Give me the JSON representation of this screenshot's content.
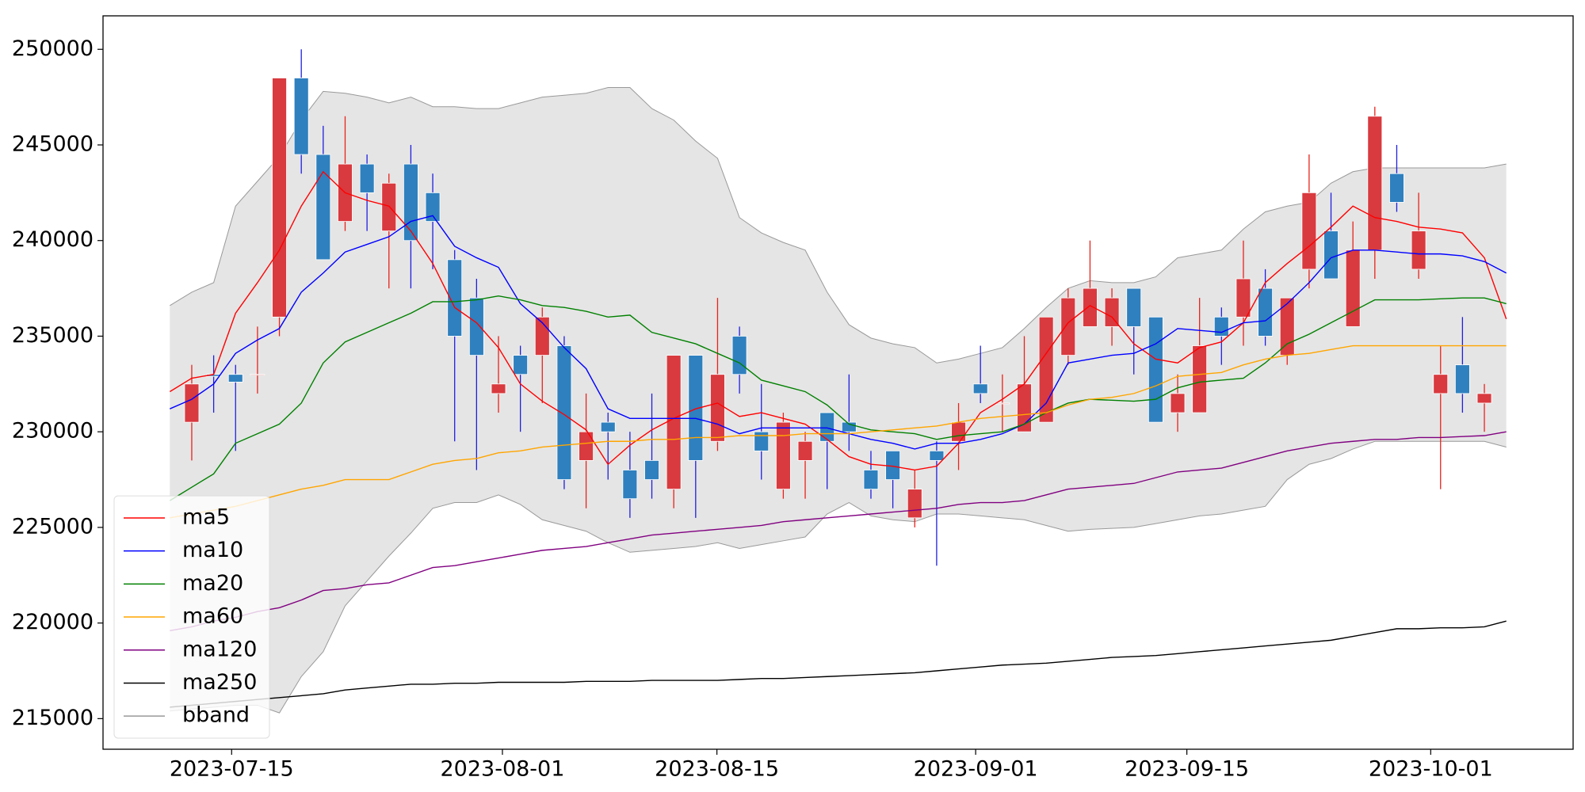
{
  "chart_data": {
    "type": "candlestick",
    "x": [
      0,
      1,
      2,
      3,
      4,
      5,
      6,
      7,
      8,
      9,
      10,
      11,
      12,
      13,
      14,
      15,
      16,
      17,
      18,
      19,
      20,
      21,
      22,
      23,
      24,
      25,
      26,
      27,
      28,
      29,
      30,
      31,
      32,
      33,
      34,
      35,
      36,
      37,
      38,
      39,
      40,
      41,
      42,
      43,
      44,
      45,
      46,
      47,
      48,
      49,
      50,
      51,
      52,
      53,
      54,
      55,
      56,
      57,
      58,
      59,
      60,
      61
    ],
    "open": [
      null,
      230500,
      233000,
      233000,
      233000,
      236000,
      248500,
      244500,
      241000,
      244000,
      240500,
      244000,
      242500,
      239000,
      237000,
      232000,
      234000,
      234000,
      234500,
      228500,
      230500,
      228000,
      228500,
      227000,
      234000,
      229500,
      235000,
      230000,
      227000,
      228500,
      231000,
      230500,
      228000,
      229000,
      225500,
      229000,
      229500,
      232500,
      231500,
      230000,
      230500,
      234000,
      235500,
      235500,
      237500,
      236000,
      231000,
      231000,
      236000,
      236000,
      237500,
      234000,
      238500,
      240500,
      235500,
      239500,
      243500,
      238500,
      232000,
      233500,
      231500,
      null
    ],
    "high": [
      null,
      233500,
      234000,
      233500,
      235500,
      248500,
      250000,
      246000,
      246500,
      244500,
      243500,
      245000,
      243500,
      239500,
      238000,
      235000,
      234500,
      236500,
      235000,
      232000,
      231000,
      230000,
      232000,
      234000,
      234000,
      237000,
      235500,
      232500,
      231000,
      230000,
      231000,
      233000,
      229000,
      229000,
      228000,
      229500,
      231500,
      234500,
      233000,
      235000,
      236000,
      237500,
      240000,
      237500,
      237500,
      236000,
      233000,
      237000,
      236500,
      240000,
      238500,
      237000,
      244500,
      242500,
      241000,
      247000,
      245000,
      242500,
      234500,
      236000,
      232500,
      null
    ],
    "low": [
      null,
      228500,
      231000,
      229000,
      232000,
      235000,
      243500,
      239000,
      240500,
      240500,
      237500,
      237500,
      238500,
      229500,
      228000,
      231000,
      230000,
      231500,
      227000,
      226000,
      227500,
      225500,
      226500,
      226000,
      225500,
      229000,
      232000,
      227500,
      226500,
      226500,
      227000,
      229000,
      226500,
      226000,
      225000,
      223000,
      228000,
      231500,
      230000,
      230000,
      230500,
      233500,
      235500,
      234500,
      233000,
      230500,
      230000,
      231000,
      233500,
      234500,
      234500,
      233500,
      237500,
      238000,
      235500,
      238000,
      241500,
      238000,
      227000,
      231000,
      230000,
      null
    ],
    "close": [
      null,
      232500,
      232900,
      232600,
      233000,
      248500,
      244500,
      239000,
      244000,
      242500,
      243000,
      240000,
      241000,
      235000,
      234000,
      232500,
      233000,
      236000,
      227500,
      230000,
      230000,
      226500,
      227500,
      234000,
      228500,
      233000,
      233000,
      229000,
      230500,
      229500,
      229500,
      230000,
      227000,
      227500,
      227000,
      228500,
      230500,
      232000,
      231500,
      232500,
      236000,
      237000,
      237500,
      237000,
      235500,
      230500,
      232000,
      234500,
      235000,
      238000,
      235000,
      237000,
      242500,
      238000,
      239500,
      246500,
      242000,
      240500,
      233000,
      232000,
      232000,
      null
    ],
    "up_color": "#d83a3f",
    "down_color": "#2f80be",
    "up_wick_color": "#e8231c",
    "down_wick_color": "#1f1fe0",
    "series": [
      {
        "name": "ma5",
        "color": "#ff0000",
        "values": [
          232100,
          232800,
          233000,
          236200,
          237800,
          239500,
          241800,
          243600,
          242500,
          242100,
          241800,
          240500,
          238800,
          236500,
          235700,
          234400,
          232500,
          231600,
          230900,
          230100,
          228300,
          229300,
          230100,
          230700,
          231200,
          231500,
          230800,
          231000,
          230700,
          230400,
          229600,
          228700,
          228300,
          228200,
          228000,
          228200,
          229400,
          231000,
          231700,
          232500,
          234100,
          235700,
          236600,
          236000,
          234600,
          233800,
          233600,
          234400,
          234700,
          235700,
          237800,
          238800,
          239700,
          240700,
          241800,
          241200,
          241000,
          240700,
          240600,
          240400,
          239100,
          235900
        ]
      },
      {
        "name": "ma10",
        "color": "#0000ff",
        "values": [
          231200,
          231700,
          232500,
          234100,
          234800,
          235400,
          237300,
          238300,
          239400,
          239800,
          240200,
          241000,
          241300,
          239700,
          239100,
          238600,
          236700,
          235700,
          234400,
          233300,
          231200,
          230700,
          230700,
          230700,
          230700,
          230400,
          229900,
          230200,
          230200,
          230200,
          230200,
          229900,
          229600,
          229400,
          229100,
          229400,
          229400,
          229600,
          229900,
          230400,
          231500,
          233600,
          233800,
          234000,
          234100,
          234600,
          235400,
          235300,
          235200,
          235700,
          235800,
          236700,
          237800,
          239100,
          239500,
          239500,
          239400,
          239300,
          239300,
          239200,
          238900,
          238300
        ]
      },
      {
        "name": "ma20",
        "color": "#008000",
        "values": [
          226400,
          227100,
          227800,
          229400,
          229900,
          230400,
          231500,
          233600,
          234700,
          235200,
          235700,
          236200,
          236800,
          236800,
          236900,
          237100,
          236900,
          236600,
          236500,
          236300,
          236000,
          236100,
          235200,
          234900,
          234600,
          234100,
          233600,
          232700,
          232400,
          232100,
          231400,
          230400,
          230100,
          230000,
          229900,
          229600,
          229800,
          229900,
          230000,
          230400,
          231000,
          231500,
          231700,
          231650,
          231600,
          231700,
          232300,
          232600,
          232700,
          232800,
          233600,
          234600,
          235100,
          235700,
          236300,
          236900,
          236900,
          236900,
          236950,
          237000,
          237000,
          236700
        ]
      },
      {
        "name": "ma60",
        "color": "#ffa500",
        "values": [
          225500,
          225700,
          225900,
          226100,
          226400,
          226700,
          227000,
          227200,
          227500,
          227500,
          227500,
          227900,
          228300,
          228500,
          228600,
          228900,
          229000,
          229200,
          229300,
          229400,
          229500,
          229500,
          229600,
          229600,
          229700,
          229700,
          229800,
          229800,
          229800,
          229900,
          229900,
          229900,
          230000,
          230100,
          230200,
          230300,
          230500,
          230700,
          230800,
          230900,
          231000,
          231400,
          231700,
          231800,
          232000,
          232400,
          232900,
          233000,
          233100,
          233500,
          233800,
          234000,
          234100,
          234300,
          234500,
          234500,
          234500,
          234500,
          234500,
          234500,
          234500,
          234500
        ]
      },
      {
        "name": "ma120",
        "color": "#800080",
        "values": [
          219600,
          219800,
          220100,
          220300,
          220600,
          220800,
          221200,
          221700,
          221800,
          222000,
          222100,
          222500,
          222900,
          223000,
          223200,
          223400,
          223600,
          223800,
          223900,
          224000,
          224200,
          224400,
          224600,
          224700,
          224800,
          224900,
          225000,
          225100,
          225300,
          225400,
          225500,
          225600,
          225700,
          225800,
          225900,
          226000,
          226200,
          226300,
          226300,
          226400,
          226700,
          227000,
          227100,
          227200,
          227300,
          227600,
          227900,
          228000,
          228100,
          228400,
          228700,
          229000,
          229200,
          229400,
          229500,
          229600,
          229600,
          229700,
          229700,
          229750,
          229800,
          230000
        ]
      },
      {
        "name": "ma250",
        "color": "#000000",
        "values": [
          215600,
          215700,
          215800,
          215900,
          216000,
          216100,
          216200,
          216300,
          216500,
          216600,
          216700,
          216800,
          216800,
          216850,
          216850,
          216900,
          216900,
          216900,
          216900,
          216950,
          216950,
          216950,
          217000,
          217000,
          217000,
          217000,
          217050,
          217100,
          217100,
          217150,
          217200,
          217250,
          217300,
          217350,
          217400,
          217500,
          217600,
          217700,
          217800,
          217850,
          217900,
          218000,
          218100,
          218200,
          218250,
          218300,
          218400,
          218500,
          218600,
          218700,
          218800,
          218900,
          219000,
          219100,
          219300,
          219500,
          219700,
          219700,
          219750,
          219750,
          219800,
          220100
        ]
      }
    ],
    "bband": {
      "name": "bband",
      "color": "#999999",
      "fill": "#e5e5e5",
      "upper": [
        236600,
        237300,
        237800,
        241800,
        243100,
        244400,
        246300,
        247800,
        247700,
        247500,
        247200,
        247500,
        247000,
        247000,
        246900,
        246900,
        247200,
        247500,
        247600,
        247700,
        248000,
        248000,
        246900,
        246300,
        245200,
        244300,
        241200,
        240400,
        239900,
        239500,
        237300,
        235600,
        234900,
        234600,
        234400,
        233600,
        233800,
        234100,
        234400,
        235400,
        236500,
        237500,
        237900,
        237800,
        237800,
        238100,
        239100,
        239300,
        239500,
        240600,
        241500,
        241800,
        242000,
        243000,
        243600,
        243800,
        243800,
        243800,
        243800,
        243800,
        243800,
        244000
      ],
      "lower": [
        215400,
        215500,
        215600,
        215700,
        215700,
        215300,
        217200,
        218500,
        220900,
        222200,
        223500,
        224700,
        226000,
        226300,
        226300,
        226700,
        226200,
        225400,
        225100,
        224800,
        224200,
        223700,
        223800,
        223900,
        224000,
        224200,
        223900,
        224100,
        224300,
        224500,
        225700,
        226300,
        225600,
        225400,
        225300,
        225700,
        225700,
        225600,
        225500,
        225400,
        225100,
        224800,
        224900,
        224950,
        225000,
        225200,
        225400,
        225600,
        225700,
        225900,
        226100,
        227500,
        228300,
        228600,
        229100,
        229500,
        229500,
        229500,
        229500,
        229500,
        229500,
        229200
      ]
    },
    "xlim": [
      -3.05,
      64.05
    ],
    "xticks": [
      {
        "value": 2.82,
        "label": "2023-07-15"
      },
      {
        "value": 15.18,
        "label": "2023-08-01"
      },
      {
        "value": 24.97,
        "label": "2023-08-15"
      },
      {
        "value": 36.78,
        "label": "2023-09-01"
      },
      {
        "value": 46.42,
        "label": "2023-09-15"
      },
      {
        "value": 57.55,
        "label": "2023-10-01"
      }
    ],
    "ylim": [
      213400,
      251750
    ],
    "yticks": [
      215000,
      220000,
      225000,
      230000,
      235000,
      240000,
      245000,
      250000
    ],
    "legend": "lower left"
  }
}
